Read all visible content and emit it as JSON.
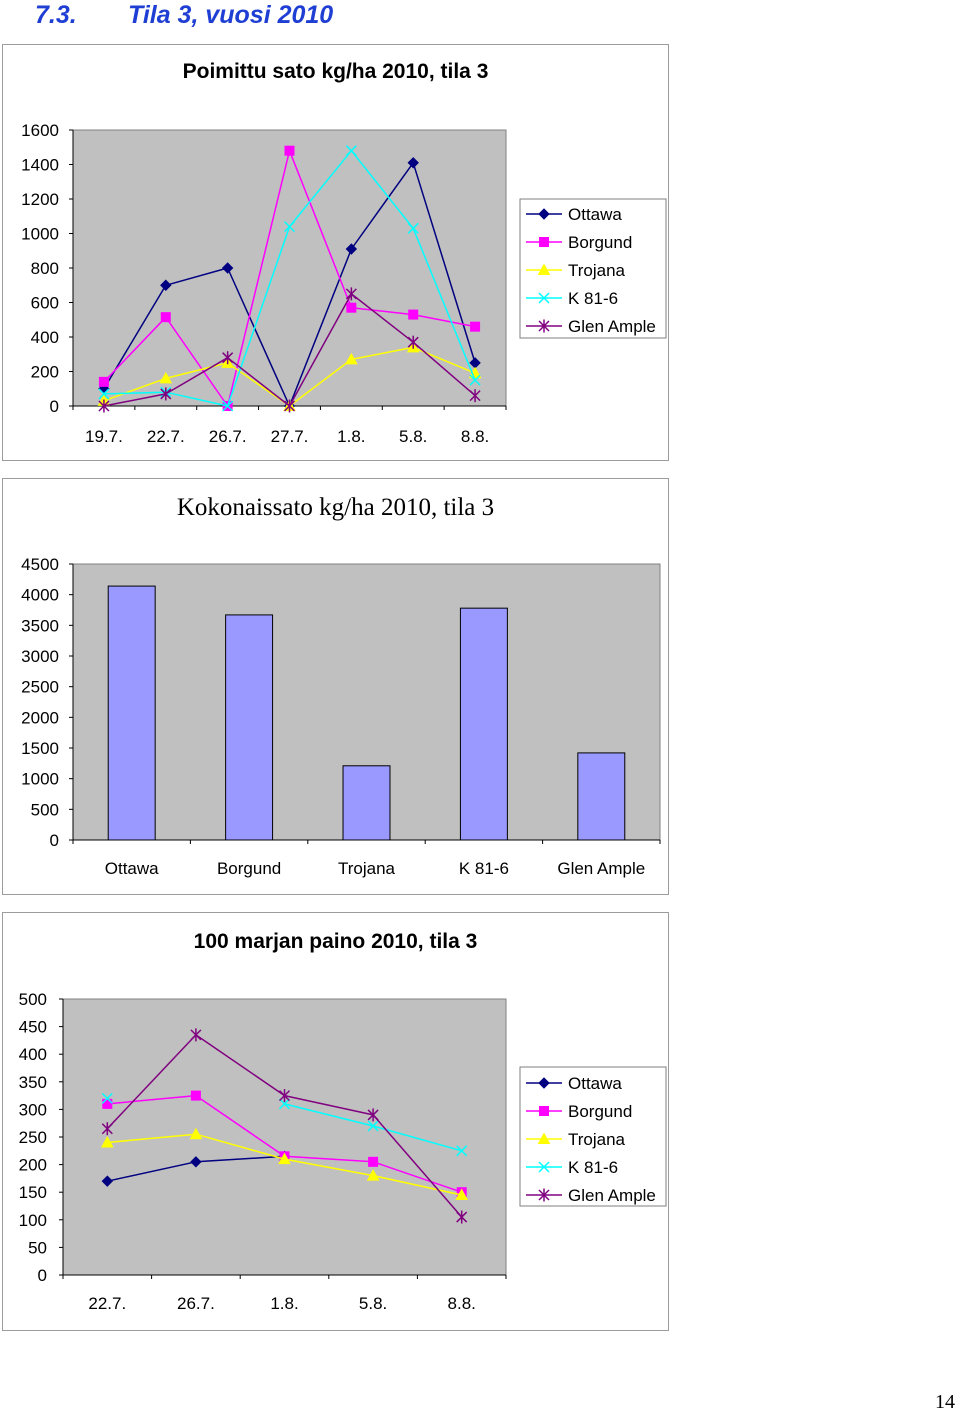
{
  "heading": {
    "number": "7.3.",
    "title": "Tila 3, vuosi 2010",
    "color": "#1f3fd4"
  },
  "page_number": "14",
  "chart_data": [
    {
      "type": "line",
      "title": "Poimittu sato kg/ha 2010, tila 3",
      "categories": [
        "19.7.",
        "22.7.",
        "26.7.",
        "27.7.",
        "1.8.",
        "5.8.",
        "8.8."
      ],
      "ylim": [
        0,
        1600
      ],
      "yticks": [
        0,
        200,
        400,
        600,
        800,
        1000,
        1200,
        1400,
        1600
      ],
      "grid": false,
      "legend": "right",
      "plot_bg": "#c0c0c0",
      "series": [
        {
          "name": "Ottawa",
          "color": "#000080",
          "marker": "diamond",
          "values": [
            100,
            700,
            800,
            0,
            910,
            1410,
            250
          ]
        },
        {
          "name": "Borgund",
          "color": "#ff00ff",
          "marker": "square",
          "values": [
            140,
            515,
            0,
            1480,
            570,
            530,
            460
          ]
        },
        {
          "name": "Trojana",
          "color": "#ffff00",
          "marker": "triangle",
          "values": [
            30,
            160,
            250,
            0,
            270,
            340,
            190
          ]
        },
        {
          "name": "K 81-6",
          "color": "#00ffff",
          "marker": "x",
          "values": [
            70,
            80,
            0,
            1040,
            1480,
            1030,
            150
          ]
        },
        {
          "name": "Glen Ample",
          "color": "#800080",
          "marker": "asterisk",
          "values": [
            0,
            70,
            280,
            0,
            650,
            370,
            60
          ]
        }
      ]
    },
    {
      "type": "bar",
      "title": "Kokonaissato kg/ha 2010, tila 3",
      "categories": [
        "Ottawa",
        "Borgund",
        "Trojana",
        "K 81-6",
        "Glen Ample"
      ],
      "values": [
        4140,
        3670,
        1210,
        3780,
        1420
      ],
      "ylim": [
        0,
        4500
      ],
      "yticks": [
        0,
        500,
        1000,
        1500,
        2000,
        2500,
        3000,
        3500,
        4000,
        4500
      ],
      "grid": false,
      "legend": "none",
      "plot_bg": "#c0c0c0",
      "bar_color": "#9999ff"
    },
    {
      "type": "line",
      "title": "100 marjan paino 2010, tila 3",
      "categories": [
        "22.7.",
        "26.7.",
        "1.8.",
        "5.8.",
        "8.8."
      ],
      "ylim": [
        0,
        500
      ],
      "yticks": [
        0,
        50,
        100,
        150,
        200,
        250,
        300,
        350,
        400,
        450,
        500
      ],
      "grid": false,
      "legend": "right",
      "plot_bg": "#c0c0c0",
      "series": [
        {
          "name": "Ottawa",
          "color": "#000080",
          "marker": "diamond",
          "values": [
            170,
            205,
            215,
            null,
            null
          ]
        },
        {
          "name": "Borgund",
          "color": "#ff00ff",
          "marker": "square",
          "values": [
            310,
            325,
            215,
            205,
            150
          ]
        },
        {
          "name": "Trojana",
          "color": "#ffff00",
          "marker": "triangle",
          "values": [
            240,
            255,
            210,
            180,
            145
          ]
        },
        {
          "name": "K 81-6",
          "color": "#00ffff",
          "marker": "x",
          "values": [
            320,
            null,
            310,
            270,
            225
          ]
        },
        {
          "name": "Glen Ample",
          "color": "#800080",
          "marker": "asterisk",
          "values": [
            265,
            435,
            325,
            290,
            105
          ]
        }
      ]
    }
  ]
}
